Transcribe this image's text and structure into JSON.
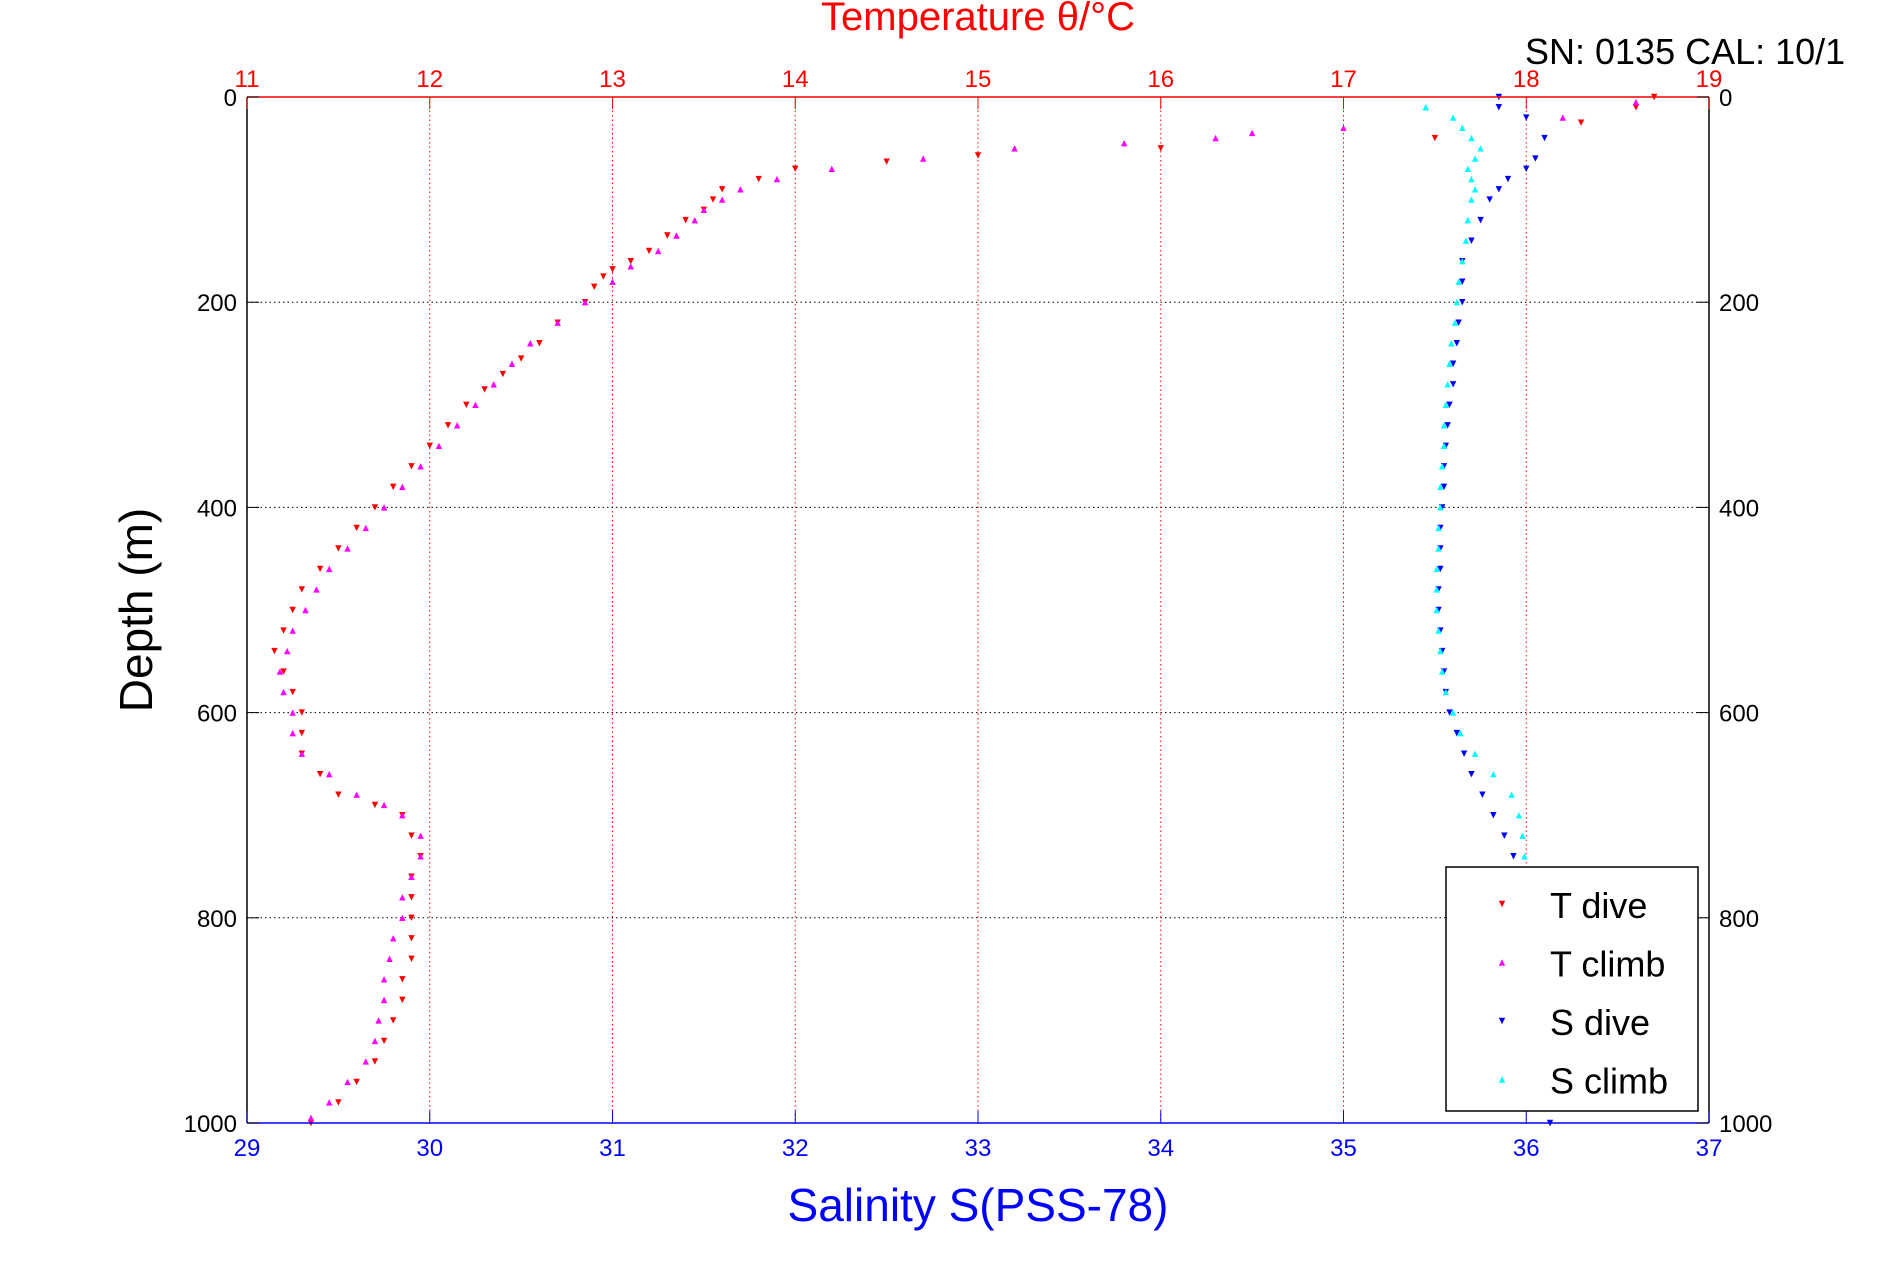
{
  "header": {
    "sn_cal": "SN: 0135  CAL: 10/1"
  },
  "colors": {
    "t_dive": "#ff0000",
    "t_climb": "#ff00ff",
    "s_dive": "#0000ff",
    "s_climb": "#00ffff",
    "temperature_axis": "#ff0000",
    "salinity_axis": "#0000ff"
  },
  "chart_data": {
    "type": "scatter",
    "title": "Temperature θ/°C",
    "xlabel": "Salinity S(PSS-78)",
    "ylabel": "Depth (m)",
    "ylim": [
      0,
      1000
    ],
    "y_reversed": true,
    "yticks": [
      "0",
      "200",
      "400",
      "600",
      "800",
      "1000"
    ],
    "temperature_axis": {
      "position": "top",
      "range": [
        11,
        19
      ],
      "ticks": [
        "11",
        "12",
        "13",
        "14",
        "15",
        "16",
        "17",
        "18",
        "19"
      ]
    },
    "salinity_axis": {
      "position": "bottom",
      "range": [
        29,
        37
      ],
      "ticks": [
        "29",
        "30",
        "31",
        "32",
        "33",
        "34",
        "35",
        "36",
        "37"
      ]
    },
    "grid": "dotted, at temperature and depth ticks",
    "legend": {
      "position": "bottom-right",
      "entries": [
        "T dive",
        "T climb",
        "S dive",
        "S climb"
      ]
    },
    "series": [
      {
        "name": "T dive",
        "axis": "temperature",
        "marker": "triangle-down",
        "points": [
          [
            18.7,
            0
          ],
          [
            18.6,
            10
          ],
          [
            18.3,
            25
          ],
          [
            17.5,
            40
          ],
          [
            16.0,
            50
          ],
          [
            15.0,
            57
          ],
          [
            14.5,
            63
          ],
          [
            14.0,
            70
          ],
          [
            13.8,
            80
          ],
          [
            13.6,
            90
          ],
          [
            13.55,
            100
          ],
          [
            13.5,
            110
          ],
          [
            13.4,
            120
          ],
          [
            13.3,
            135
          ],
          [
            13.2,
            150
          ],
          [
            13.1,
            160
          ],
          [
            13.0,
            168
          ],
          [
            12.95,
            175
          ],
          [
            12.9,
            185
          ],
          [
            12.85,
            200
          ],
          [
            12.7,
            220
          ],
          [
            12.6,
            240
          ],
          [
            12.5,
            255
          ],
          [
            12.4,
            270
          ],
          [
            12.3,
            285
          ],
          [
            12.2,
            300
          ],
          [
            12.1,
            320
          ],
          [
            12.0,
            340
          ],
          [
            11.9,
            360
          ],
          [
            11.8,
            380
          ],
          [
            11.7,
            400
          ],
          [
            11.6,
            420
          ],
          [
            11.5,
            440
          ],
          [
            11.4,
            460
          ],
          [
            11.3,
            480
          ],
          [
            11.25,
            500
          ],
          [
            11.2,
            520
          ],
          [
            11.15,
            540
          ],
          [
            11.2,
            560
          ],
          [
            11.25,
            580
          ],
          [
            11.3,
            600
          ],
          [
            11.3,
            620
          ],
          [
            11.3,
            640
          ],
          [
            11.4,
            660
          ],
          [
            11.5,
            680
          ],
          [
            11.7,
            690
          ],
          [
            11.85,
            700
          ],
          [
            11.9,
            720
          ],
          [
            11.95,
            740
          ],
          [
            11.9,
            760
          ],
          [
            11.9,
            780
          ],
          [
            11.9,
            800
          ],
          [
            11.9,
            820
          ],
          [
            11.9,
            840
          ],
          [
            11.85,
            860
          ],
          [
            11.85,
            880
          ],
          [
            11.8,
            900
          ],
          [
            11.75,
            920
          ],
          [
            11.7,
            940
          ],
          [
            11.6,
            960
          ],
          [
            11.5,
            980
          ],
          [
            11.35,
            1000
          ]
        ]
      },
      {
        "name": "T climb",
        "axis": "temperature",
        "marker": "triangle-up",
        "points": [
          [
            18.6,
            5
          ],
          [
            18.2,
            20
          ],
          [
            17.0,
            30
          ],
          [
            16.5,
            35
          ],
          [
            16.3,
            40
          ],
          [
            15.8,
            45
          ],
          [
            15.2,
            50
          ],
          [
            14.7,
            60
          ],
          [
            14.2,
            70
          ],
          [
            13.9,
            80
          ],
          [
            13.7,
            90
          ],
          [
            13.6,
            100
          ],
          [
            13.5,
            110
          ],
          [
            13.45,
            120
          ],
          [
            13.35,
            135
          ],
          [
            13.25,
            150
          ],
          [
            13.1,
            165
          ],
          [
            13.0,
            180
          ],
          [
            12.85,
            200
          ],
          [
            12.7,
            220
          ],
          [
            12.55,
            240
          ],
          [
            12.45,
            260
          ],
          [
            12.35,
            280
          ],
          [
            12.25,
            300
          ],
          [
            12.15,
            320
          ],
          [
            12.05,
            340
          ],
          [
            11.95,
            360
          ],
          [
            11.85,
            380
          ],
          [
            11.75,
            400
          ],
          [
            11.65,
            420
          ],
          [
            11.55,
            440
          ],
          [
            11.45,
            460
          ],
          [
            11.38,
            480
          ],
          [
            11.32,
            500
          ],
          [
            11.25,
            520
          ],
          [
            11.22,
            540
          ],
          [
            11.18,
            560
          ],
          [
            11.2,
            580
          ],
          [
            11.25,
            600
          ],
          [
            11.25,
            620
          ],
          [
            11.3,
            640
          ],
          [
            11.45,
            660
          ],
          [
            11.6,
            680
          ],
          [
            11.75,
            690
          ],
          [
            11.85,
            700
          ],
          [
            11.95,
            720
          ],
          [
            11.95,
            740
          ],
          [
            11.9,
            760
          ],
          [
            11.85,
            780
          ],
          [
            11.85,
            800
          ],
          [
            11.8,
            820
          ],
          [
            11.78,
            840
          ],
          [
            11.75,
            860
          ],
          [
            11.75,
            880
          ],
          [
            11.72,
            900
          ],
          [
            11.7,
            920
          ],
          [
            11.65,
            940
          ],
          [
            11.55,
            960
          ],
          [
            11.45,
            980
          ],
          [
            11.35,
            995
          ]
        ]
      },
      {
        "name": "S dive",
        "axis": "salinity",
        "marker": "triangle-down",
        "points": [
          [
            35.85,
            0
          ],
          [
            35.85,
            10
          ],
          [
            36.0,
            20
          ],
          [
            36.1,
            40
          ],
          [
            36.05,
            60
          ],
          [
            36.0,
            70
          ],
          [
            35.9,
            80
          ],
          [
            35.85,
            90
          ],
          [
            35.8,
            100
          ],
          [
            35.75,
            120
          ],
          [
            35.7,
            140
          ],
          [
            35.65,
            160
          ],
          [
            35.65,
            180
          ],
          [
            35.65,
            200
          ],
          [
            35.63,
            220
          ],
          [
            35.62,
            240
          ],
          [
            35.6,
            260
          ],
          [
            35.6,
            280
          ],
          [
            35.58,
            300
          ],
          [
            35.57,
            320
          ],
          [
            35.56,
            340
          ],
          [
            35.55,
            360
          ],
          [
            35.55,
            380
          ],
          [
            35.54,
            400
          ],
          [
            35.53,
            420
          ],
          [
            35.53,
            440
          ],
          [
            35.53,
            460
          ],
          [
            35.52,
            480
          ],
          [
            35.52,
            500
          ],
          [
            35.53,
            520
          ],
          [
            35.54,
            540
          ],
          [
            35.55,
            560
          ],
          [
            35.56,
            580
          ],
          [
            35.58,
            600
          ],
          [
            35.62,
            620
          ],
          [
            35.66,
            640
          ],
          [
            35.7,
            660
          ],
          [
            35.76,
            680
          ],
          [
            35.82,
            700
          ],
          [
            35.88,
            720
          ],
          [
            35.93,
            740
          ],
          [
            35.96,
            760
          ],
          [
            35.97,
            780
          ],
          [
            35.98,
            800
          ],
          [
            36.0,
            820
          ],
          [
            36.02,
            840
          ],
          [
            36.04,
            860
          ],
          [
            36.06,
            880
          ],
          [
            36.08,
            900
          ],
          [
            36.1,
            920
          ],
          [
            36.11,
            940
          ],
          [
            36.12,
            960
          ],
          [
            36.12,
            980
          ],
          [
            36.13,
            1000
          ]
        ]
      },
      {
        "name": "S climb",
        "axis": "salinity",
        "marker": "triangle-up",
        "points": [
          [
            35.45,
            10
          ],
          [
            35.6,
            20
          ],
          [
            35.65,
            30
          ],
          [
            35.7,
            40
          ],
          [
            35.75,
            50
          ],
          [
            35.72,
            60
          ],
          [
            35.68,
            70
          ],
          [
            35.7,
            80
          ],
          [
            35.72,
            90
          ],
          [
            35.7,
            100
          ],
          [
            35.68,
            120
          ],
          [
            35.67,
            140
          ],
          [
            35.65,
            160
          ],
          [
            35.63,
            180
          ],
          [
            35.62,
            200
          ],
          [
            35.61,
            220
          ],
          [
            35.59,
            240
          ],
          [
            35.58,
            260
          ],
          [
            35.57,
            280
          ],
          [
            35.56,
            300
          ],
          [
            35.55,
            320
          ],
          [
            35.55,
            340
          ],
          [
            35.54,
            360
          ],
          [
            35.53,
            380
          ],
          [
            35.53,
            400
          ],
          [
            35.52,
            420
          ],
          [
            35.52,
            440
          ],
          [
            35.51,
            460
          ],
          [
            35.51,
            480
          ],
          [
            35.51,
            500
          ],
          [
            35.52,
            520
          ],
          [
            35.53,
            540
          ],
          [
            35.54,
            560
          ],
          [
            35.56,
            580
          ],
          [
            35.6,
            600
          ],
          [
            35.64,
            620
          ],
          [
            35.72,
            640
          ],
          [
            35.82,
            660
          ],
          [
            35.92,
            680
          ],
          [
            35.96,
            700
          ],
          [
            35.98,
            720
          ],
          [
            35.99,
            740
          ]
        ]
      }
    ]
  }
}
